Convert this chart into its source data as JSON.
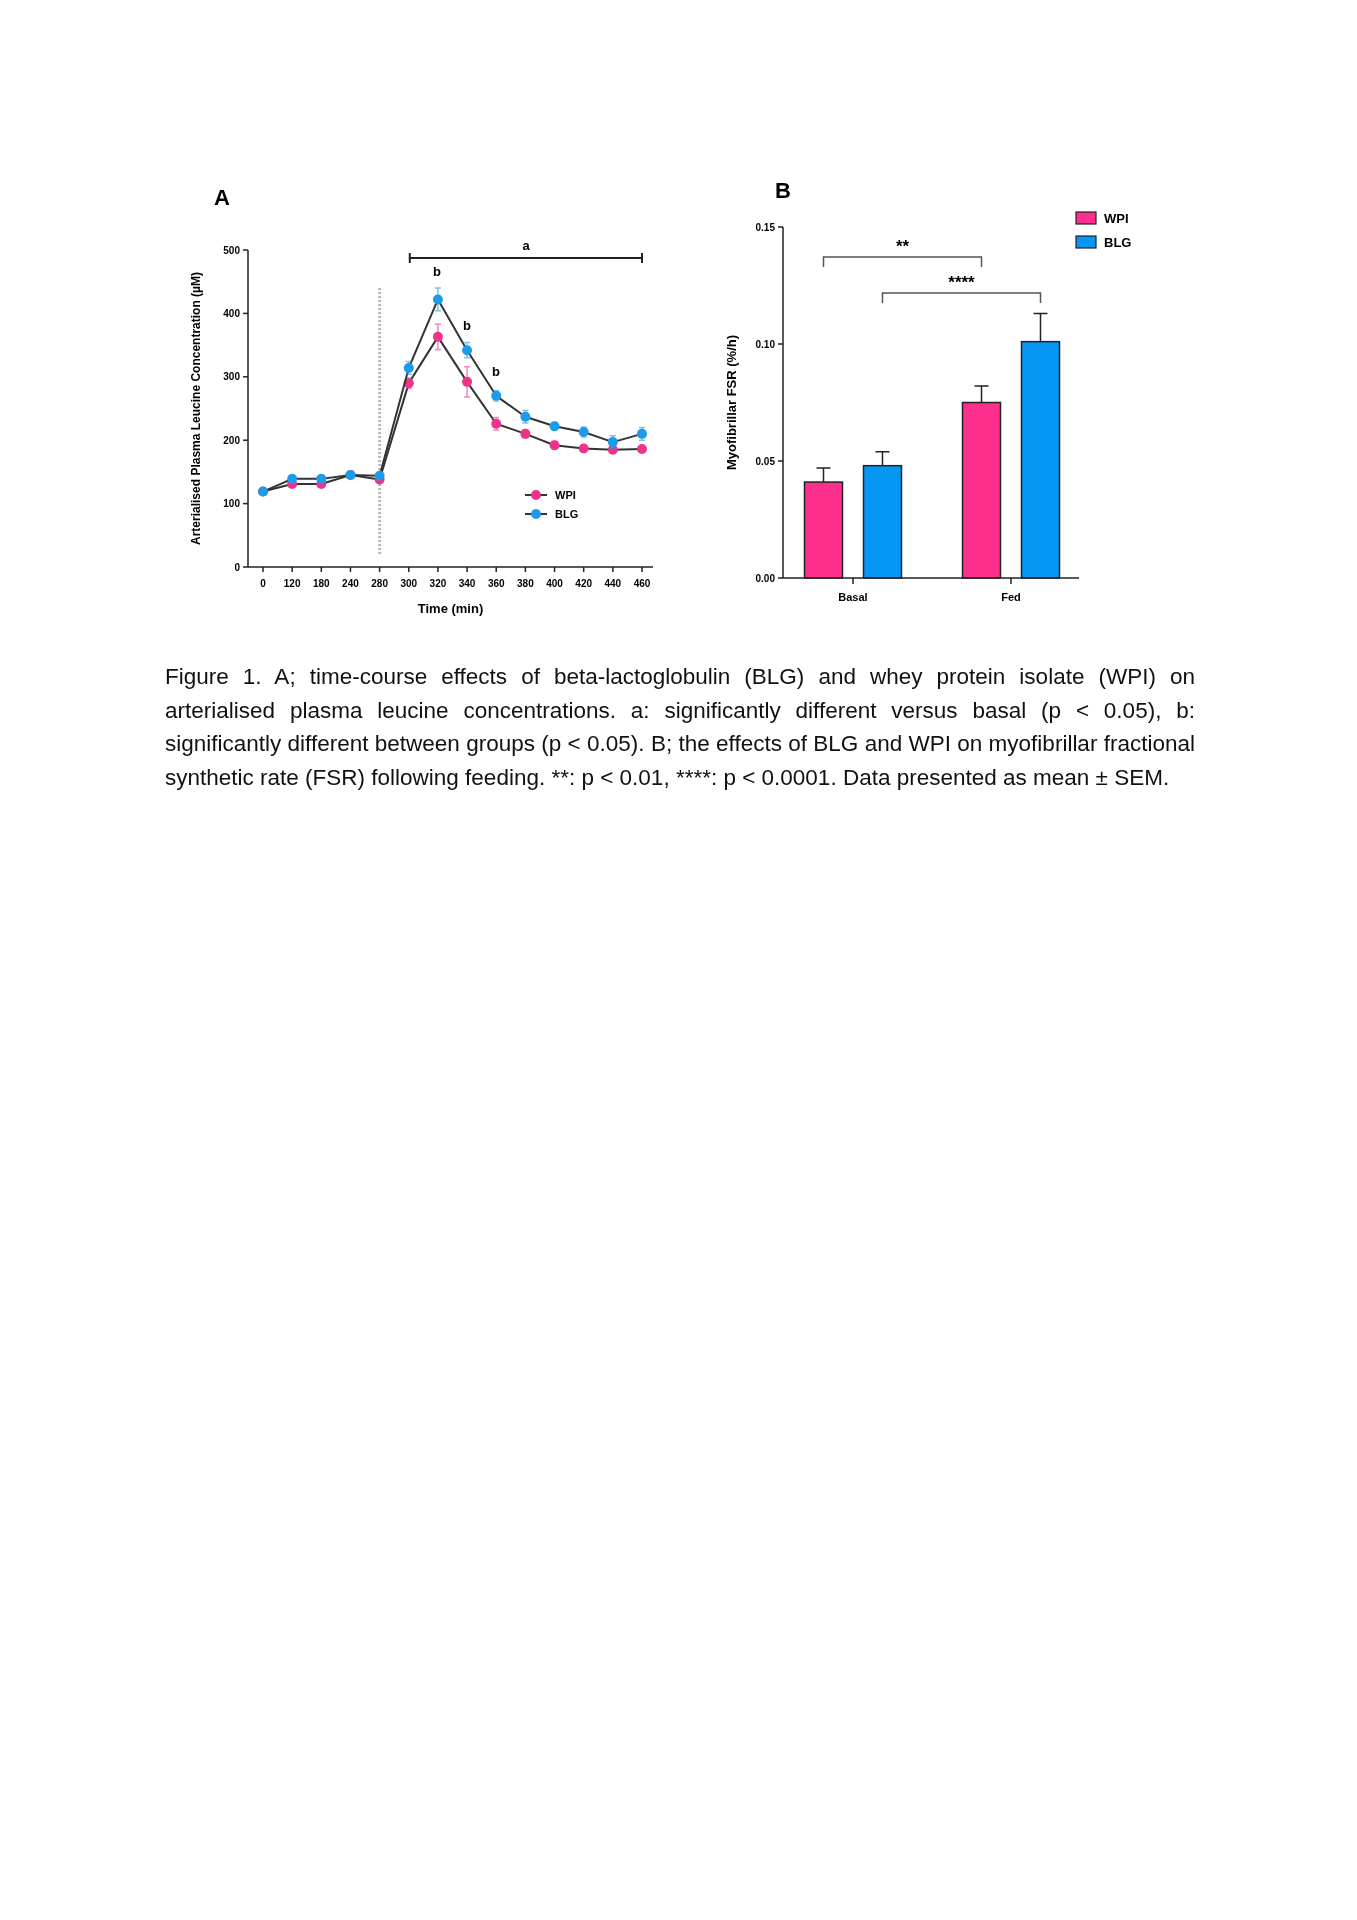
{
  "chart_data": [
    {
      "type": "line",
      "title": "A",
      "xlabel": "Time (min)",
      "ylabel": "Arterialised Plasma Leucine Concentration (µM)",
      "categories": [
        "0",
        "120",
        "180",
        "240",
        "280",
        "300",
        "320",
        "340",
        "360",
        "380",
        "400",
        "420",
        "440",
        "460"
      ],
      "series": [
        {
          "name": "WPI",
          "color": "#f0338a",
          "values": [
            119,
            131,
            131,
            145,
            138,
            290,
            363,
            292,
            226,
            210,
            192,
            187,
            185,
            186
          ],
          "errors": [
            null,
            null,
            null,
            null,
            5,
            8,
            20,
            24,
            10,
            6,
            6,
            null,
            null,
            null
          ]
        },
        {
          "name": "BLG",
          "color": "#1e9be8",
          "values": [
            119,
            139,
            139,
            145,
            144,
            314,
            422,
            342,
            270,
            237,
            222,
            213,
            197,
            210
          ],
          "errors": [
            null,
            null,
            null,
            null,
            null,
            10,
            18,
            12,
            8,
            10,
            6,
            8,
            10,
            10
          ]
        }
      ],
      "ylim": [
        0,
        500
      ],
      "yticks": [
        0,
        100,
        200,
        300,
        400,
        500
      ],
      "marker": "circle",
      "legend": "bottom right",
      "ref_lines": [
        {
          "axis": "x",
          "value": "280",
          "color": "#bbbbbb",
          "line_style": "dotted"
        }
      ],
      "annotations": [
        "a",
        "b",
        "b",
        "b",
        "Figure 1. A; time-course effects of beta-lactoglobulin (BLG) and whey protein isolate (WPI) on arterialised plasma leucine concentrations. a: significantly different versus basal (p < 0.05), b: significantly different between groups (p < 0.05). B; the effects of BLG and WPI on myofibrillar fractional synthetic rate (FSR) following feeding. **: p < 0.01, ****: p < 0.0001. Data presented as mean ± SEM."
      ]
    },
    {
      "type": "bar",
      "title": "B",
      "ylabel": "Myofibrillar FSR (%/h)",
      "categories": [
        "Basal",
        "Fed"
      ],
      "series": [
        {
          "name": "WPI",
          "color": "#fc2f8c",
          "values": [
            0.041,
            0.075
          ],
          "errors": [
            0.006,
            0.007
          ]
        },
        {
          "name": "BLG",
          "color": "#0696f4",
          "values": [
            0.048,
            0.101
          ],
          "errors": [
            0.006,
            0.012
          ]
        }
      ],
      "ylim": [
        0,
        0.15
      ],
      "yticks": [
        {
          "value": 0,
          "label": "0.00"
        },
        {
          "value": 0.05,
          "label": "0.05"
        },
        {
          "value": 0.1,
          "label": "0.10"
        },
        {
          "value": 0.15,
          "label": "0.15"
        }
      ],
      "legend": "top right",
      "annotations": [
        "**",
        "****"
      ]
    }
  ]
}
